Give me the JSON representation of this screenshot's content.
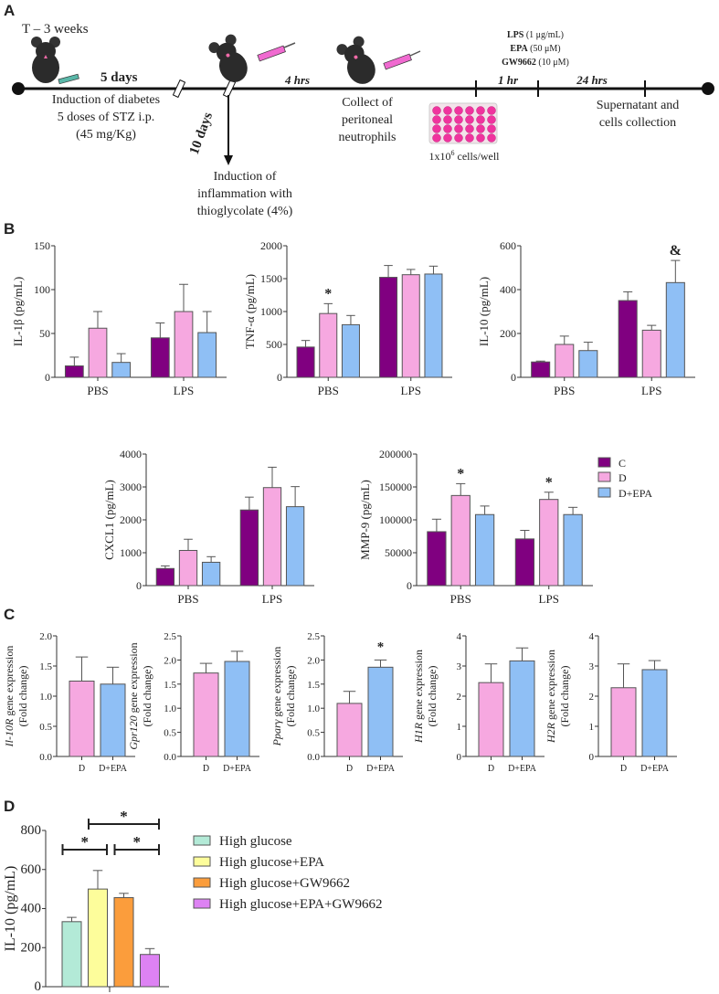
{
  "panel_labels": {
    "a": "A",
    "b": "B",
    "c": "C",
    "d": "D"
  },
  "panel_a": {
    "start": "T – 3 weeks",
    "five_days": "5 days",
    "ten_days": "10 days",
    "four_hrs": "4 hrs",
    "one_hr": "1 hr",
    "twentyfour_hrs": "24 hrs",
    "diabetes": [
      "Induction of diabetes",
      "5 doses of  STZ i.p.",
      "(45 mg/Kg)"
    ],
    "inflammation": [
      "Induction of",
      "inflammation with",
      "thioglycolate (4%)"
    ],
    "collect": [
      "Collect of",
      "peritoneal",
      "neutrophils"
    ],
    "supernatant": [
      "Supernatant and",
      "cells collection"
    ],
    "cells_per_well": "1x10",
    "cells_per_well_exp": "6",
    "cells_per_well_rest": " cells/well",
    "treatments": [
      {
        "name": "LPS",
        "dose": " (1 μg/mL)"
      },
      {
        "name": "EPA",
        "dose": " (50 μM)"
      },
      {
        "name": "GW9662",
        "dose": " (10 μM)"
      }
    ]
  },
  "legend_b": [
    {
      "label": "C",
      "color": "#800080"
    },
    {
      "label": "D",
      "color": "#f6a8e0"
    },
    {
      "label": "D+EPA",
      "color": "#8fbff5"
    }
  ],
  "legend_d": [
    {
      "label": "High glucose",
      "color": "#b3ead7"
    },
    {
      "label": "High glucose+EPA",
      "color": "#fdfd9b"
    },
    {
      "label": "High glucose+GW9662",
      "color": "#fb9d3c"
    },
    {
      "label": "High glucose+EPA+GW9662",
      "color": "#dd82f3"
    }
  ],
  "chart_data": [
    {
      "id": "il1b",
      "type": "bar",
      "ylabel": "IL-1β (pg/mL)",
      "ylim": [
        0,
        150
      ],
      "yticks": [
        0,
        50,
        100,
        150
      ],
      "categories": [
        "PBS",
        "LPS"
      ],
      "series": [
        {
          "name": "C",
          "values": [
            13,
            45
          ],
          "err_top": [
            23,
            62
          ]
        },
        {
          "name": "D",
          "values": [
            56,
            75
          ],
          "err_top": [
            75,
            106
          ]
        },
        {
          "name": "D+EPA",
          "values": [
            17,
            51
          ],
          "err_top": [
            27,
            75
          ]
        }
      ],
      "annotations": []
    },
    {
      "id": "tnf",
      "type": "bar",
      "ylabel": "TNF-α (pg/mL)",
      "ylim": [
        0,
        2000
      ],
      "yticks": [
        0,
        500,
        1000,
        1500,
        2000
      ],
      "categories": [
        "PBS",
        "LPS"
      ],
      "series": [
        {
          "name": "C",
          "values": [
            460,
            1520
          ],
          "err_top": [
            560,
            1700
          ]
        },
        {
          "name": "D",
          "values": [
            970,
            1560
          ],
          "err_top": [
            1120,
            1640
          ]
        },
        {
          "name": "D+EPA",
          "values": [
            800,
            1570
          ],
          "err_top": [
            940,
            1690
          ]
        }
      ],
      "annotations": [
        {
          "series": 1,
          "category": 0,
          "text": "*"
        }
      ]
    },
    {
      "id": "il10",
      "type": "bar",
      "ylabel": "IL-10 (pg/mL)",
      "ylim": [
        0,
        600
      ],
      "yticks": [
        0,
        200,
        400,
        600
      ],
      "categories": [
        "PBS",
        "LPS"
      ],
      "series": [
        {
          "name": "C",
          "values": [
            70,
            350
          ],
          "err_top": [
            74,
            390
          ]
        },
        {
          "name": "D",
          "values": [
            150,
            215
          ],
          "err_top": [
            188,
            237
          ]
        },
        {
          "name": "D+EPA",
          "values": [
            122,
            432
          ],
          "err_top": [
            160,
            533
          ]
        }
      ],
      "annotations": [
        {
          "series": 2,
          "category": 1,
          "text": "&"
        }
      ]
    },
    {
      "id": "cxcl1",
      "type": "bar",
      "ylabel": "CXCL1 (pg/mL)",
      "ylim": [
        0,
        4000
      ],
      "yticks": [
        0,
        1000,
        2000,
        3000,
        4000
      ],
      "categories": [
        "PBS",
        "LPS"
      ],
      "series": [
        {
          "name": "C",
          "values": [
            520,
            2300
          ],
          "err_top": [
            600,
            2690
          ]
        },
        {
          "name": "D",
          "values": [
            1070,
            2980
          ],
          "err_top": [
            1410,
            3600
          ]
        },
        {
          "name": "D+EPA",
          "values": [
            710,
            2400
          ],
          "err_top": [
            880,
            3010
          ]
        }
      ],
      "annotations": []
    },
    {
      "id": "mmp9",
      "type": "bar",
      "ylabel": "MMP-9 (pg/mL)",
      "ylim": [
        0,
        200000
      ],
      "yticks": [
        0,
        50000,
        100000,
        150000,
        200000
      ],
      "categories": [
        "PBS",
        "LPS"
      ],
      "series": [
        {
          "name": "C",
          "values": [
            82000,
            71000
          ],
          "err_top": [
            101000,
            84000
          ]
        },
        {
          "name": "D",
          "values": [
            137000,
            131000
          ],
          "err_top": [
            155000,
            142000
          ]
        },
        {
          "name": "D+EPA",
          "values": [
            108000,
            108000
          ],
          "err_top": [
            121000,
            119000
          ]
        }
      ],
      "annotations": [
        {
          "series": 1,
          "category": 0,
          "text": "*"
        },
        {
          "series": 1,
          "category": 1,
          "text": "*"
        }
      ]
    },
    {
      "id": "il10r",
      "type": "bar",
      "ylabel_gene": "Il-10R",
      "ylabel_rest": " gene expression",
      "ylabel_line2": "(Fold change)",
      "ylim": [
        0,
        2.0
      ],
      "yticks": [
        0,
        0.5,
        1.0,
        1.5,
        2.0
      ],
      "decimals": 1,
      "categories": [
        "D",
        "D+EPA"
      ],
      "values": [
        1.25,
        1.2
      ],
      "err_top": [
        1.65,
        1.48
      ],
      "annotations": []
    },
    {
      "id": "gpr120",
      "type": "bar",
      "ylabel_gene": "Gpr120",
      "ylabel_rest": " gene expression",
      "ylabel_line2": "(Fold change)",
      "ylim": [
        0,
        2.5
      ],
      "yticks": [
        0,
        0.5,
        1.0,
        1.5,
        2.0,
        2.5
      ],
      "decimals": 1,
      "categories": [
        "D",
        "D+EPA"
      ],
      "values": [
        1.73,
        1.97
      ],
      "err_top": [
        1.93,
        2.18
      ],
      "annotations": []
    },
    {
      "id": "pparg",
      "type": "bar",
      "ylabel_gene": "Pparγ",
      "ylabel_rest": " gene expression",
      "ylabel_line2": "(Fold change)",
      "ylim": [
        0,
        2.5
      ],
      "yticks": [
        0,
        0.5,
        1.0,
        1.5,
        2.0,
        2.5
      ],
      "decimals": 1,
      "categories": [
        "D",
        "D+EPA"
      ],
      "values": [
        1.1,
        1.85
      ],
      "err_top": [
        1.35,
        2.0
      ],
      "annotations": [
        {
          "index": 1,
          "text": "*"
        }
      ]
    },
    {
      "id": "h1r",
      "type": "bar",
      "ylabel_gene": "H1R",
      "ylabel_rest": " gene expression",
      "ylabel_line2": "(Fold change)",
      "ylim": [
        0,
        4
      ],
      "yticks": [
        0,
        1,
        2,
        3,
        4
      ],
      "categories": [
        "D",
        "D+EPA"
      ],
      "values": [
        2.45,
        3.17
      ],
      "err_top": [
        3.07,
        3.6
      ],
      "annotations": []
    },
    {
      "id": "h2r",
      "type": "bar",
      "ylabel_gene": "H2R",
      "ylabel_rest": " gene expression",
      "ylabel_line2": "(Fold change)",
      "ylim": [
        0,
        4
      ],
      "yticks": [
        0,
        1,
        2,
        3,
        4
      ],
      "categories": [
        "D",
        "D+EPA"
      ],
      "values": [
        2.28,
        2.88
      ],
      "err_top": [
        3.07,
        3.18
      ],
      "annotations": []
    },
    {
      "id": "il10_hg",
      "type": "bar",
      "ylabel": "IL-10 (pg/mL)",
      "ylim": [
        0,
        800
      ],
      "yticks": [
        0,
        200,
        400,
        600,
        800
      ],
      "categories": [
        "High glucose",
        "High glucose+EPA",
        "High glucose+GW9662",
        "High glucose+EPA+GW9662"
      ],
      "values": [
        333,
        500,
        456,
        165
      ],
      "err_top": [
        355,
        595,
        478,
        195
      ],
      "significance": [
        {
          "from": 0,
          "to": 1,
          "text": "*"
        },
        {
          "from": 1,
          "to": 3,
          "text": "*"
        },
        {
          "from": 2,
          "to": 3,
          "text": "*"
        }
      ]
    }
  ]
}
